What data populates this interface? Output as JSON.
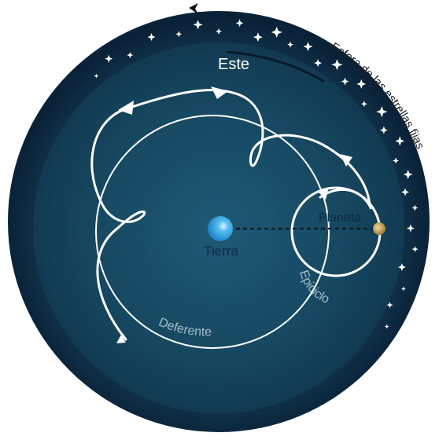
{
  "labels": {
    "east": "Este",
    "earth": "Tierra",
    "planet": "Planeta",
    "epicycle": "Epiciclo",
    "deferent": "Deferente",
    "fixed_stars": "Esfera de las estrellas fijas"
  },
  "colors": {
    "sky_outer": "#0a2238",
    "sky_inner": "#1f5e7a",
    "earth": "#3ea8e5",
    "planet": "#c9a45a",
    "lines": "#ffffff",
    "ring_text": "#1a1a1a"
  },
  "icons": {
    "stars": "four-point-star-icon",
    "orientation_marker": "arrowhead-icon"
  }
}
